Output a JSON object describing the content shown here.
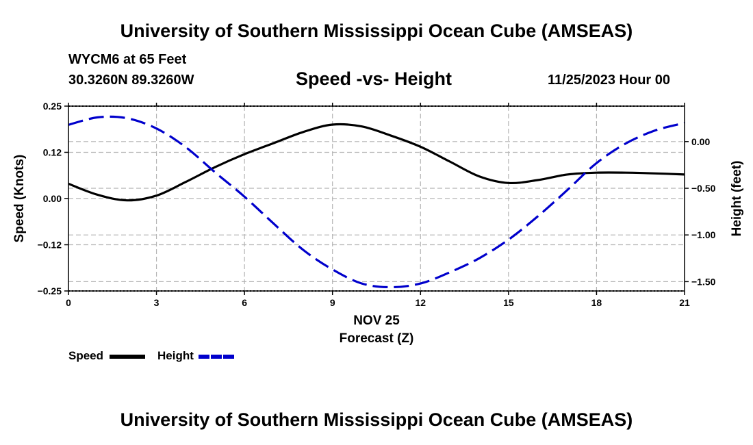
{
  "header": {
    "title": "University of Southern Mississippi Ocean Cube (AMSEAS)",
    "station": "WYCM6 at 65 Feet",
    "coordinates": "30.3260N  89.3260W",
    "subtitle": "Speed -vs- Height",
    "datetime": "11/25/2023 Hour 00"
  },
  "footer": {
    "title": "University of Southern Mississippi Ocean Cube (AMSEAS)"
  },
  "legend": {
    "speed_label": "Speed",
    "height_label": "Height"
  },
  "chart_data": {
    "type": "line",
    "title": "Speed -vs- Height",
    "xlabel": "Forecast (Z)",
    "x_sublabel": "NOV 25",
    "ylabel": "Speed (Knots)",
    "y2label": "Height (feet)",
    "xlim": [
      0,
      21
    ],
    "ylim": [
      -0.25,
      0.25
    ],
    "y2lim": [
      -1.6,
      0.38
    ],
    "x_ticks": [
      0,
      3,
      6,
      9,
      12,
      15,
      18,
      21
    ],
    "x_tick_labels": [
      "0",
      "3",
      "6",
      "9",
      "12",
      "15",
      "18",
      "21"
    ],
    "y_ticks": [
      0.25,
      0.125,
      0,
      -0.125,
      -0.25
    ],
    "y_tick_labels": [
      "0.25",
      "0.12",
      "0.00",
      "−0.12",
      "−0.25"
    ],
    "y2_ticks": [
      0.0,
      -0.5,
      -1.0,
      -1.5
    ],
    "y2_tick_labels": [
      "0.00",
      "−0.50",
      "−1.00",
      "−1.50"
    ],
    "grid": true,
    "colors": {
      "speed": "#000000",
      "height": "#0000cc",
      "grid": "#b4b4b4"
    },
    "series": [
      {
        "name": "Speed",
        "axis": "left",
        "style": "solid",
        "x": [
          0,
          1,
          2,
          3,
          4,
          5,
          6,
          7,
          8,
          9,
          10,
          11,
          12,
          13,
          14,
          15,
          16,
          17,
          18,
          19,
          20,
          21
        ],
        "values": [
          0.04,
          0.01,
          -0.005,
          0.008,
          0.045,
          0.085,
          0.12,
          0.15,
          0.18,
          0.2,
          0.195,
          0.17,
          0.14,
          0.1,
          0.06,
          0.042,
          0.05,
          0.065,
          0.07,
          0.07,
          0.068,
          0.065
        ]
      },
      {
        "name": "Height",
        "axis": "right",
        "style": "dashed",
        "x": [
          0,
          1,
          2,
          3,
          4,
          5,
          6,
          7,
          8,
          9,
          10,
          11,
          12,
          13,
          14,
          15,
          16,
          17,
          18,
          19,
          20,
          21
        ],
        "values": [
          0.18,
          0.26,
          0.25,
          0.14,
          -0.06,
          -0.33,
          -0.59,
          -0.88,
          -1.16,
          -1.37,
          -1.52,
          -1.56,
          -1.52,
          -1.4,
          -1.25,
          -1.05,
          -0.8,
          -0.52,
          -0.23,
          -0.02,
          0.12,
          0.2
        ]
      }
    ]
  }
}
